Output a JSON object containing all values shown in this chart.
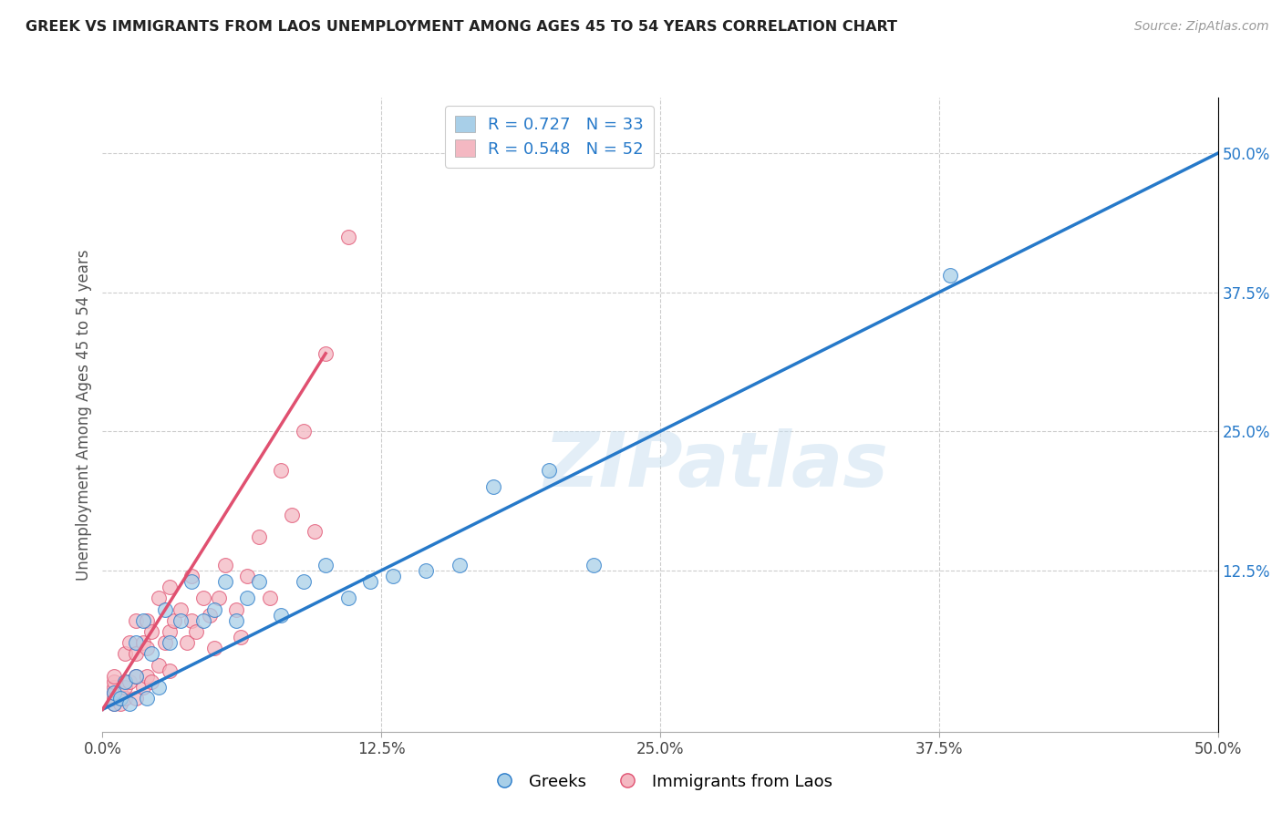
{
  "title": "GREEK VS IMMIGRANTS FROM LAOS UNEMPLOYMENT AMONG AGES 45 TO 54 YEARS CORRELATION CHART",
  "source": "Source: ZipAtlas.com",
  "ylabel": "Unemployment Among Ages 45 to 54 years",
  "xmin": 0.0,
  "xmax": 0.5,
  "ymin": -0.02,
  "ymax": 0.55,
  "x_tick_labels": [
    "0.0%",
    "12.5%",
    "25.0%",
    "37.5%",
    "50.0%"
  ],
  "x_tick_positions": [
    0.0,
    0.125,
    0.25,
    0.375,
    0.5
  ],
  "y_tick_labels": [
    "12.5%",
    "25.0%",
    "37.5%",
    "50.0%"
  ],
  "y_tick_positions": [
    0.125,
    0.25,
    0.375,
    0.5
  ],
  "legend_labels_bottom": [
    "Greeks",
    "Immigrants from Laos"
  ],
  "legend_r_blue": "R = 0.727",
  "legend_n_blue": "N = 33",
  "legend_r_pink": "R = 0.548",
  "legend_n_pink": "N = 52",
  "color_blue": "#a8cfe8",
  "color_pink": "#f4b8c2",
  "line_blue": "#2679c9",
  "line_pink": "#e05070",
  "line_diag": "#d0c8d0",
  "watermark": "ZIPatlas",
  "blue_line_x0": 0.0,
  "blue_line_y0": 0.0,
  "blue_line_x1": 0.5,
  "blue_line_y1": 0.5,
  "pink_line_x0": 0.0,
  "pink_line_y0": 0.0,
  "pink_line_x1": 0.1,
  "pink_line_y1": 0.32,
  "blue_scatter_x": [
    0.005,
    0.005,
    0.008,
    0.01,
    0.012,
    0.015,
    0.015,
    0.018,
    0.02,
    0.022,
    0.025,
    0.028,
    0.03,
    0.035,
    0.04,
    0.045,
    0.05,
    0.055,
    0.06,
    0.065,
    0.07,
    0.08,
    0.09,
    0.1,
    0.11,
    0.12,
    0.13,
    0.145,
    0.16,
    0.175,
    0.2,
    0.22,
    0.38
  ],
  "blue_scatter_y": [
    0.005,
    0.015,
    0.01,
    0.025,
    0.005,
    0.03,
    0.06,
    0.08,
    0.01,
    0.05,
    0.02,
    0.09,
    0.06,
    0.08,
    0.115,
    0.08,
    0.09,
    0.115,
    0.08,
    0.1,
    0.115,
    0.085,
    0.115,
    0.13,
    0.1,
    0.115,
    0.12,
    0.125,
    0.13,
    0.2,
    0.215,
    0.13,
    0.39
  ],
  "pink_scatter_x": [
    0.005,
    0.005,
    0.005,
    0.005,
    0.005,
    0.005,
    0.008,
    0.008,
    0.01,
    0.01,
    0.01,
    0.012,
    0.012,
    0.015,
    0.015,
    0.015,
    0.015,
    0.018,
    0.018,
    0.02,
    0.02,
    0.02,
    0.022,
    0.022,
    0.025,
    0.025,
    0.028,
    0.03,
    0.03,
    0.03,
    0.032,
    0.035,
    0.038,
    0.04,
    0.04,
    0.042,
    0.045,
    0.048,
    0.05,
    0.052,
    0.055,
    0.06,
    0.062,
    0.065,
    0.07,
    0.075,
    0.08,
    0.085,
    0.09,
    0.095,
    0.1,
    0.11
  ],
  "pink_scatter_y": [
    0.005,
    0.01,
    0.015,
    0.02,
    0.025,
    0.03,
    0.005,
    0.015,
    0.01,
    0.02,
    0.05,
    0.025,
    0.06,
    0.01,
    0.03,
    0.05,
    0.08,
    0.02,
    0.06,
    0.03,
    0.055,
    0.08,
    0.025,
    0.07,
    0.04,
    0.1,
    0.06,
    0.035,
    0.07,
    0.11,
    0.08,
    0.09,
    0.06,
    0.08,
    0.12,
    0.07,
    0.1,
    0.085,
    0.055,
    0.1,
    0.13,
    0.09,
    0.065,
    0.12,
    0.155,
    0.1,
    0.215,
    0.175,
    0.25,
    0.16,
    0.32,
    0.425
  ]
}
